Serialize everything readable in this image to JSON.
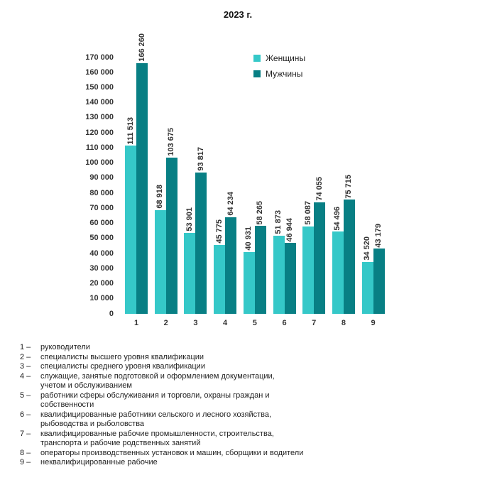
{
  "title": "2023 г.",
  "legend": {
    "items": [
      {
        "label": "Женщины",
        "color": "#35C8C8"
      },
      {
        "label": "Мужчины",
        "color": "#087F84"
      }
    ]
  },
  "chart_data": {
    "type": "bar",
    "title": "2023 г.",
    "categories": [
      "1",
      "2",
      "3",
      "4",
      "5",
      "6",
      "7",
      "8",
      "9"
    ],
    "series": [
      {
        "name": "Женщины",
        "color": "#35C8C8",
        "values": [
          111513,
          68918,
          53901,
          45775,
          40931,
          51873,
          58087,
          54496,
          34520
        ],
        "value_labels": [
          "111 513",
          "68 918",
          "53 901",
          "45 775",
          "40 931",
          "51 873",
          "58 087",
          "54 496",
          "34 520"
        ]
      },
      {
        "name": "Мужчины",
        "color": "#087F84",
        "values": [
          166260,
          103675,
          93817,
          64234,
          58265,
          46944,
          74055,
          75715,
          43179
        ],
        "value_labels": [
          "166 260",
          "103 675",
          "93 817",
          "64 234",
          "58 265",
          "46 944",
          "74 055",
          "75 715",
          "43 179"
        ]
      }
    ],
    "ylim": [
      0,
      170000
    ],
    "ytick_step": 10000,
    "ytick_labels": [
      "0",
      "10 000",
      "20 000",
      "30 000",
      "40 000",
      "50 000",
      "60 000",
      "70 000",
      "80 000",
      "90 000",
      "100 000",
      "110 000",
      "120 000",
      "130 000",
      "140 000",
      "150 000",
      "160 000",
      "170 000"
    ],
    "grid": false,
    "legend_position": "upper-right-inside",
    "bar_value_labels_rotated": true
  },
  "footnotes": [
    {
      "marker": "1 –",
      "text": "руководители"
    },
    {
      "marker": "2 –",
      "text": "специалисты высшего уровня квалификации"
    },
    {
      "marker": "3 –",
      "text": "специалисты среднего уровня квалификации"
    },
    {
      "marker": "4 –",
      "text": "служащие, занятые подготовкой и оформлением документации,\nучетом и обслуживанием"
    },
    {
      "marker": "5 –",
      "text": "работники сферы обслуживания и торговли, охраны граждан и\nсобственности"
    },
    {
      "marker": "6 –",
      "text": "квалифицированные работники сельского и лесного хозяйства,\nрыбоводства и рыболовства"
    },
    {
      "marker": "7 –",
      "text": "квалифицированные рабочие промышленности, строительства,\nтранспорта и рабочие родственных занятий"
    },
    {
      "marker": "8 –",
      "text": "операторы производственных установок и машин, сборщики и водители"
    },
    {
      "marker": "9 –",
      "text": "неквалифицированные рабочие"
    }
  ]
}
